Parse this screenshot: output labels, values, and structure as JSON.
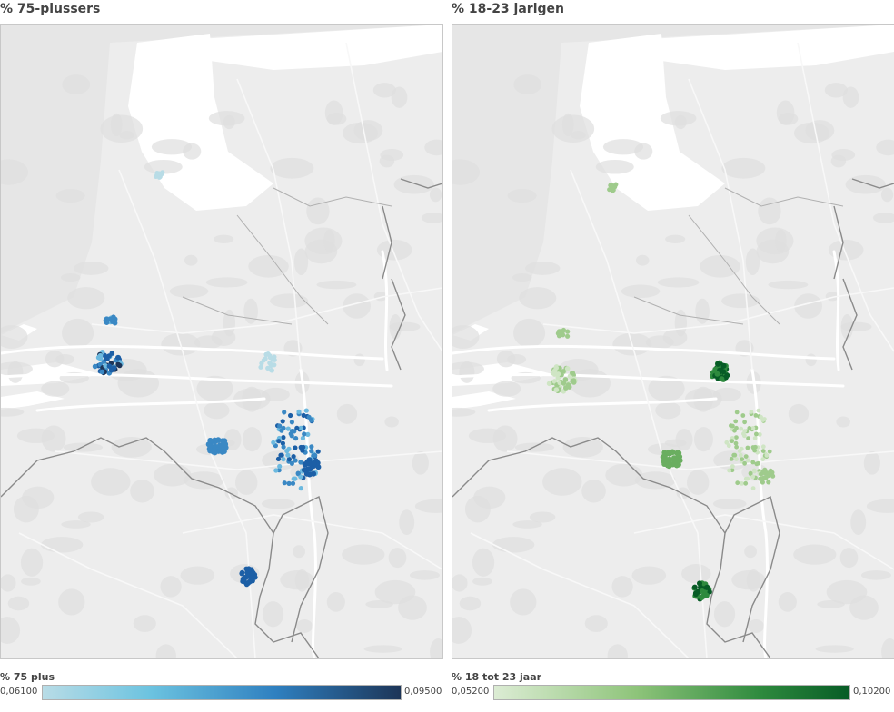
{
  "panels": [
    {
      "title": "% 75-plussers",
      "legend": {
        "title": "% 75 plus",
        "min": "0,06100",
        "max": "0,09500"
      },
      "colors": [
        "#b8dce6",
        "#6cb9df",
        "#3a88c4",
        "#1c5fa6",
        "#1d3558"
      ]
    },
    {
      "title": "% 18-23 jarigen",
      "legend": {
        "title": "% 18 tot 23 jaar",
        "min": "0,05200",
        "max": "0,10200"
      },
      "colors": [
        "#cfe5c4",
        "#9fcb8c",
        "#6aae60",
        "#2e8a3e",
        "#075c26"
      ]
    }
  ]
}
